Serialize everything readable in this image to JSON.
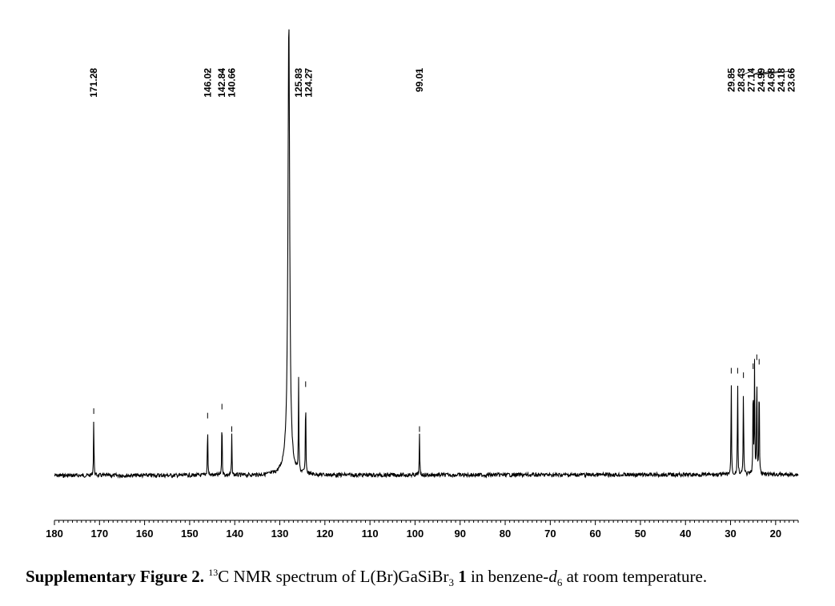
{
  "chart_data": {
    "type": "line",
    "title": "",
    "xlabel": "",
    "ylabel": "",
    "x_reversed": true,
    "xlim": [
      180,
      15
    ],
    "x_ticks": [
      "180",
      "170",
      "160",
      "150",
      "140",
      "130",
      "120",
      "110",
      "100",
      "90",
      "80",
      "70",
      "60",
      "50",
      "40",
      "30",
      "20"
    ],
    "grid": false,
    "legend": "none",
    "peaks": [
      {
        "ppm": 171.28,
        "label": "171.28",
        "height": 0.13
      },
      {
        "ppm": 146.02,
        "label": "146.02",
        "height": 0.12
      },
      {
        "ppm": 142.84,
        "label": "142.84",
        "height": 0.14
      },
      {
        "ppm": 140.66,
        "label": "140.66",
        "height": 0.09
      },
      {
        "ppm": 128.0,
        "label": "",
        "height": 1.0
      },
      {
        "ppm": 125.83,
        "label": "125.83",
        "height": 0.2
      },
      {
        "ppm": 124.27,
        "label": "124.27",
        "height": 0.19
      },
      {
        "ppm": 99.01,
        "label": "99.01",
        "height": 0.09
      },
      {
        "ppm": 29.85,
        "label": "29.85",
        "height": 0.22
      },
      {
        "ppm": 28.43,
        "label": "28.43",
        "height": 0.22
      },
      {
        "ppm": 27.14,
        "label": "27.14",
        "height": 0.21
      },
      {
        "ppm": 24.99,
        "label": "24.99",
        "height": 0.23
      },
      {
        "ppm": 24.68,
        "label": "24.68",
        "height": 0.24
      },
      {
        "ppm": 24.18,
        "label": "24.18",
        "height": 0.25
      },
      {
        "ppm": 23.66,
        "label": "23.66",
        "height": 0.24
      }
    ],
    "line_color": "#000000"
  },
  "caption": {
    "bold_lead": "Supplementary Figure 2.",
    "iso_mass": "13",
    "part1": "C NMR spectrum of L(Br)GaSiBr",
    "sub3": "3",
    "compound_no": "1",
    "part2": " in benzene-",
    "solvent_d": "d",
    "solvent_sub": "6",
    "part3": " at room temperature."
  }
}
